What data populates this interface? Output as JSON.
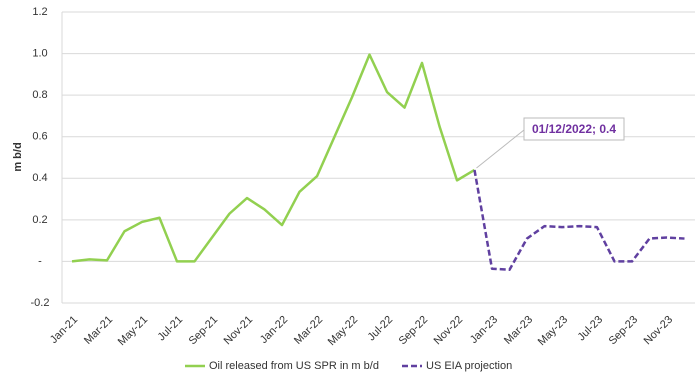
{
  "chart_data": {
    "type": "line",
    "y_label": "m b/d",
    "categories": [
      "Jan-21",
      null,
      "Mar-21",
      null,
      "May-21",
      null,
      "Jul-21",
      null,
      "Sep-21",
      null,
      "Nov-21",
      null,
      "Jan-22",
      null,
      "Mar-22",
      null,
      "May-22",
      null,
      "Jul-22",
      null,
      "Sep-22",
      null,
      "Nov-22",
      null,
      "Jan-23",
      null,
      "Mar-23",
      null,
      "May-23",
      null,
      "Jul-23",
      null,
      "Sep-23",
      null,
      "Nov-23",
      null
    ],
    "series": [
      {
        "name": "Oil released from US SPR in m b/d",
        "color": "#92d050",
        "dashed": false,
        "values": [
          0.0,
          0.01,
          0.005,
          0.145,
          0.19,
          0.21,
          0.0,
          0.0,
          0.115,
          0.23,
          0.305,
          0.25,
          0.175,
          0.335,
          0.41,
          0.6,
          0.79,
          0.995,
          0.815,
          0.74,
          0.955,
          0.65,
          0.39,
          0.44,
          null,
          null,
          null,
          null,
          null,
          null,
          null,
          null,
          null,
          null,
          null,
          null
        ]
      },
      {
        "name": "US EIA projection",
        "color": "#6040a0",
        "dashed": true,
        "values": [
          null,
          null,
          null,
          null,
          null,
          null,
          null,
          null,
          null,
          null,
          null,
          null,
          null,
          null,
          null,
          null,
          null,
          null,
          null,
          null,
          null,
          null,
          null,
          0.44,
          -0.035,
          -0.04,
          0.11,
          0.17,
          0.165,
          0.17,
          0.165,
          0.0,
          0.0,
          0.11,
          0.115,
          0.11
        ]
      }
    ],
    "ylim": [
      -0.2,
      1.2
    ],
    "yticks": [
      -0.2,
      {
        "value": 0,
        "label": "-"
      },
      0.2,
      0.4,
      0.6,
      0.8,
      {
        "value": 1,
        "label": "1.0"
      },
      1.2
    ],
    "grid": true,
    "annotation": "01/12/2022; 0.4",
    "legend": "bottom"
  }
}
